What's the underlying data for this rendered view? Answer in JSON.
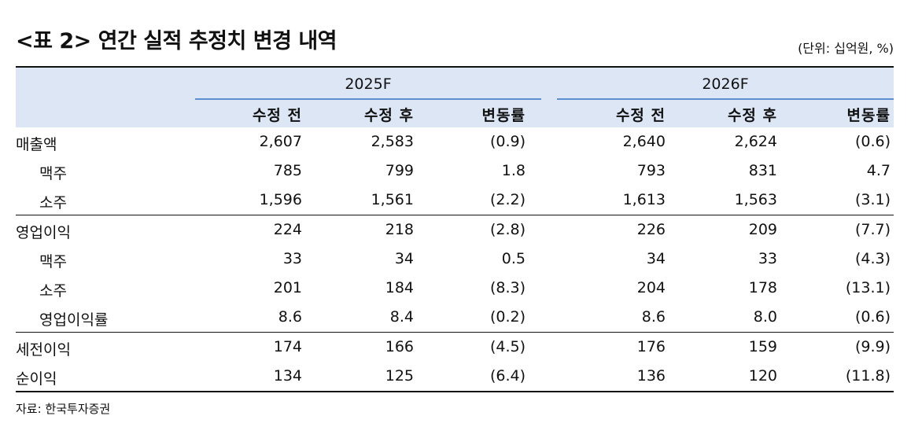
{
  "title": "<표 2> 연간 실적 추정치 변경 내역",
  "unit": "(단위: 십억원, %)",
  "header": {
    "years": [
      "2025F",
      "2026F"
    ],
    "subcolumns": [
      "수정 전",
      "수정 후",
      "변동률",
      "수정 전",
      "수정 후",
      "변동률"
    ]
  },
  "groups": [
    {
      "rows": [
        {
          "label": "매출액",
          "indent": false,
          "values": [
            "2,607",
            "2,583",
            "(0.9)",
            "2,640",
            "2,624",
            "(0.6)"
          ]
        },
        {
          "label": "맥주",
          "indent": true,
          "values": [
            "785",
            "799",
            "1.8",
            "793",
            "831",
            "4.7"
          ]
        },
        {
          "label": "소주",
          "indent": true,
          "values": [
            "1,596",
            "1,561",
            "(2.2)",
            "1,613",
            "1,563",
            "(3.1)"
          ]
        }
      ]
    },
    {
      "rows": [
        {
          "label": "영업이익",
          "indent": false,
          "values": [
            "224",
            "218",
            "(2.8)",
            "226",
            "209",
            "(7.7)"
          ]
        },
        {
          "label": "맥주",
          "indent": true,
          "values": [
            "33",
            "34",
            "0.5",
            "34",
            "33",
            "(4.3)"
          ]
        },
        {
          "label": "소주",
          "indent": true,
          "values": [
            "201",
            "184",
            "(8.3)",
            "204",
            "178",
            "(13.1)"
          ]
        },
        {
          "label": "영업이익률",
          "indent": true,
          "values": [
            "8.6",
            "8.4",
            "(0.2)",
            "8.6",
            "8.0",
            "(0.6)"
          ]
        }
      ]
    },
    {
      "rows": [
        {
          "label": "세전이익",
          "indent": false,
          "values": [
            "174",
            "166",
            "(4.5)",
            "176",
            "159",
            "(9.9)"
          ]
        },
        {
          "label": "순이익",
          "indent": false,
          "values": [
            "134",
            "125",
            "(6.4)",
            "136",
            "120",
            "(11.8)"
          ]
        }
      ]
    }
  ],
  "source": "자료: 한국투자증권"
}
